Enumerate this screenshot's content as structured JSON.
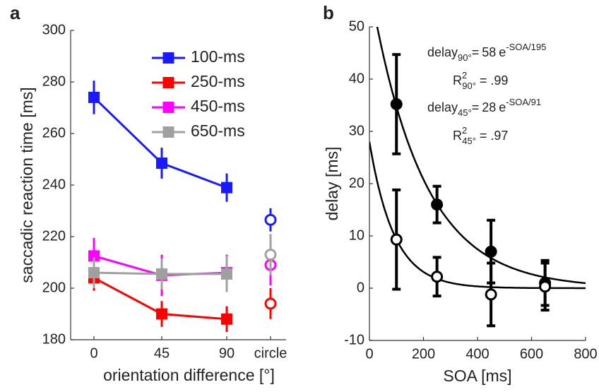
{
  "chart_data": [
    {
      "type": "line",
      "panel": "a",
      "ylabel": "saccadic reaction time [ms]",
      "xlabel": "orientation difference [°]",
      "categories": [
        "0",
        "45",
        "90",
        "circle"
      ],
      "markers": [
        "square",
        "square",
        "square",
        "circle"
      ],
      "ylim": [
        180,
        300
      ],
      "yticks": [
        180,
        200,
        220,
        240,
        260,
        280,
        300
      ],
      "legend": "upper right",
      "series": [
        {
          "name": "100-ms",
          "color": "#1a1aff",
          "values": [
            274,
            248.5,
            239,
            226.5
          ],
          "errors": [
            6.5,
            6,
            5.5,
            4.5
          ]
        },
        {
          "name": "250-ms",
          "color": "#ff0000",
          "values": [
            204,
            190,
            188,
            194
          ],
          "errors": [
            5,
            5,
            5,
            6
          ]
        },
        {
          "name": "450-ms",
          "color": "#ff00ff",
          "values": [
            212.5,
            205,
            206,
            209
          ],
          "errors": [
            7,
            8,
            7,
            8
          ]
        },
        {
          "name": "650-ms",
          "color": "#a0a0a0",
          "values": [
            206,
            205.5,
            205.5,
            213
          ],
          "errors": [
            6,
            6,
            7,
            8
          ]
        }
      ]
    },
    {
      "type": "scatter",
      "panel": "b",
      "xlabel": "SOA [ms]",
      "ylabel": "delay [ms]",
      "xlim": [
        0,
        800
      ],
      "xticks": [
        0,
        200,
        400,
        600,
        800
      ],
      "ylim": [
        -10,
        50
      ],
      "yticks": [
        -10,
        0,
        10,
        20,
        30,
        40,
        50
      ],
      "series": [
        {
          "marker": "filled",
          "color": "#000000",
          "x": [
            100,
            250,
            450,
            650
          ],
          "values": [
            35.2,
            16,
            7,
            1
          ],
          "errors": [
            9.5,
            3.5,
            6,
            4.3
          ]
        },
        {
          "marker": "open",
          "color": "#000000",
          "x": [
            100,
            250,
            450,
            650
          ],
          "values": [
            9.3,
            2.2,
            -1.2,
            0.3
          ],
          "errors": [
            9.5,
            3.7,
            6,
            4.5
          ]
        }
      ],
      "fits": [
        {
          "lhs": "delay",
          "lhs_sub": "90°",
          "eq": "=",
          "amplitude": 58,
          "base": "e",
          "exp_prefix": "-SOA/",
          "tau": 195,
          "r2": "R",
          "r2_sup": "2",
          "r2_sub": "90°",
          "r2_eq": "= .99"
        },
        {
          "lhs": "delay",
          "lhs_sub": "45°",
          "eq": "=",
          "amplitude": 28,
          "base": "e",
          "exp_prefix": "-SOA/",
          "tau": 91,
          "r2": "R",
          "r2_sup": "2",
          "r2_sub": "45°",
          "r2_eq": "= .97"
        }
      ]
    }
  ]
}
